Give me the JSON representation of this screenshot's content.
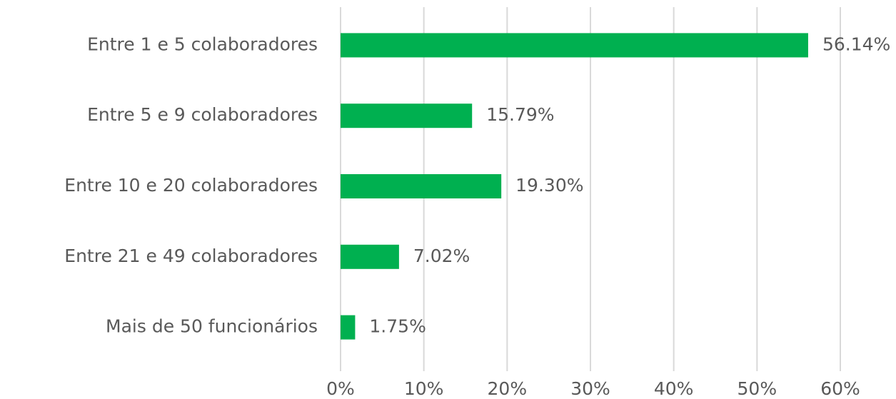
{
  "chart_data": {
    "type": "bar",
    "orientation": "horizontal",
    "categories": [
      "Entre 1 e 5 colaboradores",
      "Entre 5 e 9 colaboradores",
      "Entre 10 e 20 colaboradores",
      "Entre 21 e 49 colaboradores",
      "Mais de 50 funcionários"
    ],
    "values": [
      56.14,
      15.79,
      19.3,
      7.02,
      1.75
    ],
    "value_labels": [
      "56.14%",
      "15.79%",
      "19.30%",
      "7.02%",
      "1.75%"
    ],
    "color": "#00b050",
    "xlim": [
      0,
      60
    ],
    "xticks": [
      {
        "value": 0,
        "label": "0%"
      },
      {
        "value": 10,
        "label": "10%"
      },
      {
        "value": 20,
        "label": "20%"
      },
      {
        "value": 30,
        "label": "30%"
      },
      {
        "value": 40,
        "label": "40%"
      },
      {
        "value": 50,
        "label": "50%"
      },
      {
        "value": 60,
        "label": "60%"
      }
    ],
    "grid": true
  }
}
